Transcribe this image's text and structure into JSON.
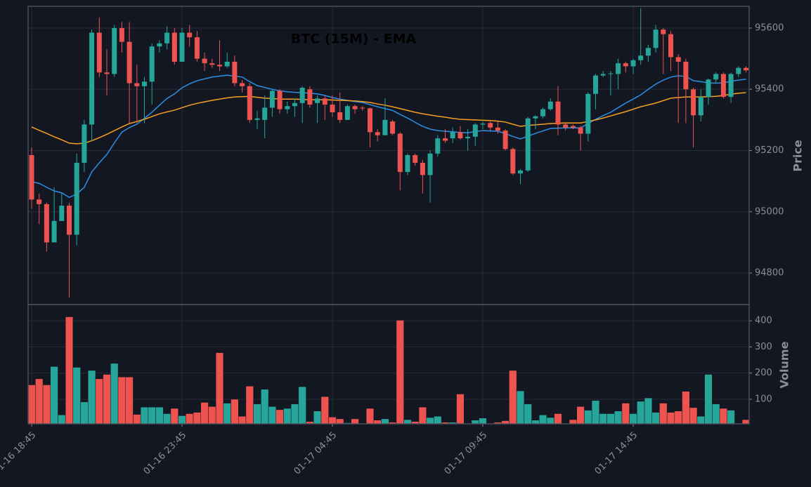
{
  "chart_data": [
    {
      "type": "candlestick",
      "title": "BTC (15M) - EMA",
      "ylabel": "Price",
      "up_color": "#26a69a",
      "down_color": "#ef5350",
      "grid": true,
      "categories": [
        "01-16 18:45",
        null,
        null,
        null,
        null,
        null,
        null,
        null,
        null,
        null,
        null,
        null,
        null,
        null,
        null,
        null,
        null,
        null,
        null,
        null,
        "01-16 23:45",
        null,
        null,
        null,
        null,
        null,
        null,
        null,
        null,
        null,
        null,
        null,
        null,
        null,
        null,
        null,
        null,
        null,
        null,
        null,
        "01-17 04:45",
        null,
        null,
        null,
        null,
        null,
        null,
        null,
        null,
        null,
        null,
        null,
        null,
        null,
        null,
        null,
        null,
        null,
        null,
        null,
        "01-17 09:45",
        null,
        null,
        null,
        null,
        null,
        null,
        null,
        null,
        null,
        null,
        null,
        null,
        null,
        null,
        null,
        null,
        null,
        null,
        null,
        "01-17 14:45",
        null,
        null,
        null,
        null,
        null,
        null,
        null,
        null,
        null,
        null,
        null,
        null,
        null,
        null,
        null
      ],
      "open": [
        95185,
        95040,
        95025,
        94900,
        94970,
        95020,
        94925,
        95160,
        95285,
        95585,
        95455,
        95450,
        95600,
        95555,
        95420,
        95410,
        95425,
        95540,
        95550,
        95585,
        95490,
        95585,
        95570,
        95500,
        95485,
        95480,
        95475,
        95490,
        95420,
        95410,
        95300,
        95300,
        95340,
        95395,
        95335,
        95345,
        95355,
        95400,
        95355,
        95370,
        95350,
        95325,
        95300,
        95345,
        95340,
        95338,
        95260,
        95250,
        95295,
        95255,
        95130,
        95185,
        95160,
        95120,
        95190,
        95240,
        95240,
        95260,
        95240,
        95245,
        95285,
        95290,
        95275,
        95265,
        95205,
        95125,
        95135,
        95305,
        95312,
        95335,
        95360,
        95285,
        95280,
        95275,
        95255,
        95385,
        95445,
        95450,
        95450,
        95485,
        95475,
        95495,
        95510,
        95535,
        95595,
        95580,
        95505,
        95490,
        95400,
        95315,
        95375,
        95432,
        95450,
        95375,
        95450,
        95470
      ],
      "high": [
        95210,
        95060,
        95030,
        95080,
        95060,
        95030,
        95190,
        95300,
        95595,
        95635,
        95530,
        95610,
        95620,
        95620,
        95480,
        95440,
        95550,
        95560,
        95605,
        95600,
        95600,
        95610,
        95590,
        95520,
        95500,
        95560,
        95520,
        95510,
        95430,
        95420,
        95330,
        95380,
        95400,
        95400,
        95360,
        95370,
        95410,
        95410,
        95380,
        95380,
        95380,
        95390,
        95350,
        95350,
        95345,
        95340,
        95270,
        95370,
        95300,
        95260,
        95190,
        95190,
        95170,
        95200,
        95250,
        95270,
        95275,
        95280,
        95270,
        95290,
        95295,
        95295,
        95295,
        95270,
        95210,
        95140,
        95310,
        95315,
        95340,
        95370,
        95410,
        95290,
        95285,
        95280,
        95390,
        95450,
        95460,
        95460,
        95500,
        95490,
        95500,
        95665,
        95545,
        95610,
        95600,
        95590,
        95515,
        95500,
        95405,
        95400,
        95435,
        95455,
        95455,
        95455,
        95475,
        95475
      ],
      "low": [
        95010,
        94960,
        94870,
        94900,
        94970,
        94720,
        94890,
        95130,
        95230,
        95440,
        95380,
        95440,
        95520,
        95290,
        95290,
        95290,
        95350,
        95520,
        95530,
        95480,
        95490,
        95540,
        95490,
        95460,
        95470,
        95460,
        95470,
        95410,
        95390,
        95290,
        95270,
        95240,
        95310,
        95320,
        95320,
        95310,
        95290,
        95340,
        95290,
        95300,
        95310,
        95290,
        95300,
        95320,
        95330,
        95210,
        95230,
        95250,
        95250,
        95070,
        95120,
        95150,
        95060,
        95030,
        95180,
        95225,
        95225,
        95235,
        95200,
        95215,
        95270,
        95265,
        95255,
        95200,
        95120,
        95090,
        95130,
        95270,
        95305,
        95330,
        95250,
        95265,
        95270,
        95200,
        95230,
        95335,
        95440,
        95380,
        95400,
        95455,
        95450,
        95480,
        95490,
        95520,
        95450,
        95460,
        95290,
        95290,
        95210,
        95295,
        95350,
        95420,
        95370,
        95355,
        95440,
        95455
      ],
      "close": [
        95040,
        95025,
        94900,
        94970,
        95020,
        94925,
        95160,
        95285,
        95585,
        95455,
        95450,
        95600,
        95555,
        95420,
        95410,
        95425,
        95540,
        95550,
        95585,
        95490,
        95585,
        95570,
        95500,
        95485,
        95480,
        95475,
        95490,
        95420,
        95410,
        95300,
        95305,
        95340,
        95395,
        95335,
        95345,
        95355,
        95405,
        95350,
        95370,
        95350,
        95325,
        95300,
        95345,
        95335,
        95338,
        95260,
        95250,
        95300,
        95255,
        95130,
        95185,
        95160,
        95120,
        95190,
        95240,
        95232,
        95260,
        95240,
        95245,
        95285,
        95288,
        95275,
        95265,
        95205,
        95125,
        95135,
        95305,
        95312,
        95335,
        95360,
        95285,
        95275,
        95275,
        95255,
        95385,
        95445,
        95450,
        95452,
        95485,
        95475,
        95495,
        95510,
        95535,
        95595,
        95580,
        95505,
        95490,
        95400,
        95315,
        95375,
        95432,
        95450,
        95375,
        95450,
        95470,
        95462
      ],
      "lines": [
        {
          "color": "#2b8fe6",
          "values": [
            95098,
            95093,
            95080,
            95068,
            95062,
            95047,
            95058,
            95080,
            95130,
            95160,
            95187,
            95225,
            95260,
            95275,
            95286,
            95305,
            95325,
            95348,
            95370,
            95385,
            95405,
            95418,
            95428,
            95434,
            95440,
            95443,
            95446,
            95443,
            95440,
            95425,
            95412,
            95406,
            95400,
            95395,
            95392,
            95390,
            95389,
            95387,
            95385,
            95380,
            95373,
            95368,
            95364,
            95360,
            95357,
            95350,
            95343,
            95337,
            95331,
            95318,
            95306,
            95292,
            95279,
            95270,
            95265,
            95263,
            95261,
            95259,
            95258,
            95262,
            95265,
            95264,
            95263,
            95255,
            95246,
            95238,
            95247,
            95256,
            95264,
            95272,
            95273,
            95274,
            95274,
            95274,
            95288,
            95302,
            95314,
            95325,
            95340,
            95355,
            95368,
            95382,
            95400,
            95417,
            95430,
            95440,
            95444,
            95442,
            95428,
            95425,
            95421,
            95420,
            95421,
            95426,
            95430,
            95433
          ]
        },
        {
          "color": "#f5a020",
          "values": [
            95277,
            95266,
            95256,
            95245,
            95235,
            95224,
            95222,
            95224,
            95232,
            95242,
            95253,
            95265,
            95277,
            95288,
            95295,
            95302,
            95311,
            95320,
            95326,
            95332,
            95340,
            95348,
            95354,
            95359,
            95364,
            95368,
            95372,
            95375,
            95376,
            95377,
            95374,
            95371,
            95370,
            95368,
            95368,
            95368,
            95367,
            95366,
            95366,
            95366,
            95365,
            95364,
            95363,
            95362,
            95360,
            95357,
            95352,
            95348,
            95343,
            95337,
            95331,
            95325,
            95320,
            95316,
            95312,
            95309,
            95305,
            95302,
            95301,
            95300,
            95299,
            95298,
            95296,
            95293,
            95286,
            95279,
            95282,
            95284,
            95286,
            95288,
            95289,
            95290,
            95290,
            95290,
            95295,
            95300,
            95306,
            95313,
            95320,
            95327,
            95335,
            95343,
            95349,
            95355,
            95363,
            95371,
            95373,
            95375,
            95375,
            95375,
            95376,
            95377,
            95380,
            95384,
            95387,
            95389
          ]
        }
      ],
      "ylim": [
        94697,
        95671
      ],
      "yticks": [
        94800,
        95000,
        95200,
        95400,
        95600
      ]
    },
    {
      "type": "bar",
      "ylabel": "Volume",
      "grid": true,
      "values": [
        155,
        178,
        155,
        225,
        40,
        415,
        222,
        90,
        210,
        178,
        195,
        237,
        185,
        185,
        42,
        70,
        70,
        70,
        45,
        65,
        37,
        45,
        50,
        88,
        72,
        278,
        85,
        100,
        35,
        150,
        82,
        138,
        72,
        60,
        65,
        82,
        148,
        15,
        55,
        110,
        32,
        25,
        10,
        25,
        8,
        65,
        20,
        25,
        12,
        402,
        22,
        15,
        70,
        30,
        35,
        12,
        12,
        120,
        8,
        20,
        28,
        8,
        12,
        18,
        210,
        132,
        82,
        20,
        40,
        30,
        45,
        8,
        22,
        72,
        58,
        95,
        45,
        45,
        55,
        85,
        45,
        92,
        105,
        50,
        85,
        50,
        55,
        130,
        68,
        35,
        195,
        82,
        65,
        58,
        8,
        22
      ],
      "ylim": [
        6,
        462
      ],
      "yticks": [
        100,
        200,
        300,
        400
      ]
    }
  ]
}
